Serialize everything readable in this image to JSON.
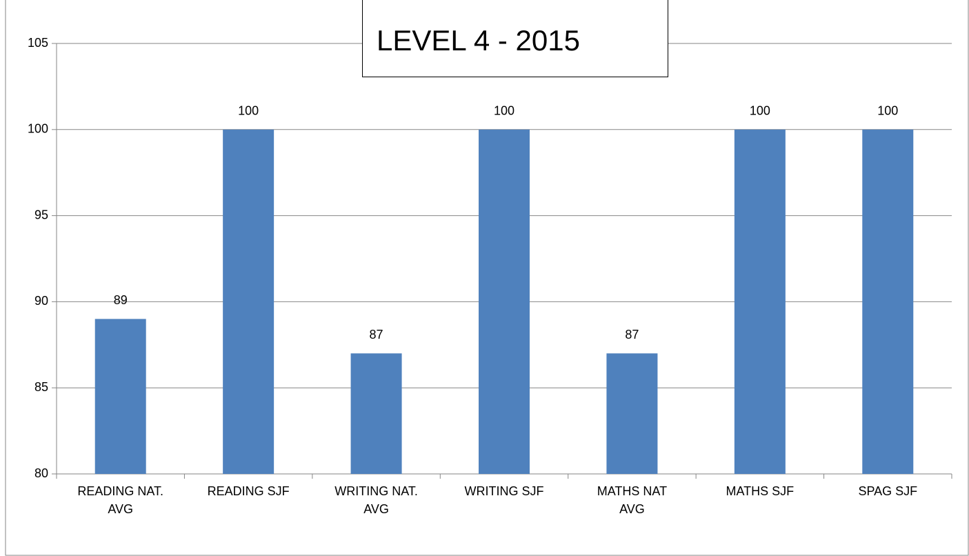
{
  "chart_data": {
    "type": "bar",
    "title": "LEVEL 4 - 2015",
    "categories": [
      "READING NAT. AVG",
      "READING SJF",
      "WRITING NAT. AVG",
      "WRITING SJF",
      "MATHS NAT AVG",
      "MATHS SJF",
      "SPAG SJF"
    ],
    "values": [
      89,
      100,
      87,
      100,
      87,
      100,
      100
    ],
    "color": "#4f81bd",
    "ylim": [
      80,
      105
    ],
    "yticks": [
      80,
      85,
      90,
      95,
      100,
      105
    ],
    "grid": true
  }
}
